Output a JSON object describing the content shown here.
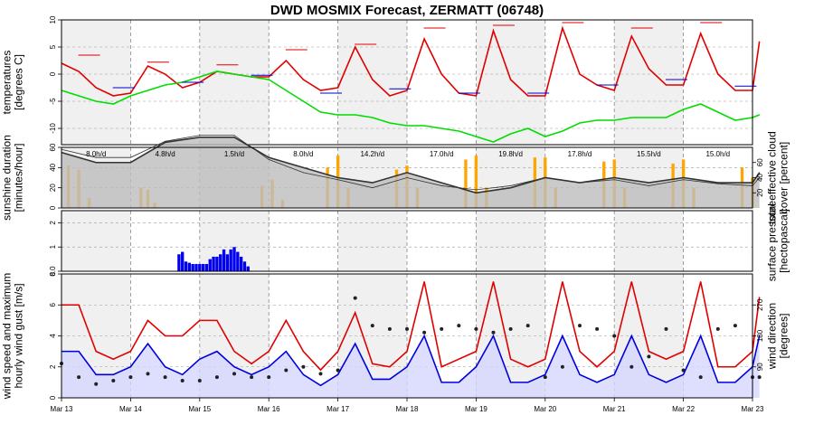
{
  "chart_data": {
    "type": "line",
    "title": "DWD MOSMIX Forecast, ZERMATT (06748)",
    "dates": [
      "Mar 13",
      "Mar 14",
      "Mar 15",
      "Mar 16",
      "Mar 17",
      "Mar 18",
      "Mar 19",
      "Mar 20",
      "Mar 21",
      "Mar 22",
      "Mar 23"
    ],
    "colors": {
      "temp": "#e00000",
      "dew": "#00dd00",
      "sun": "#ffa500",
      "cloud": "#bdbdbd",
      "precip": "#0000ee",
      "wind": "#0000dd",
      "gust": "#e00000",
      "dir": "#222222",
      "wind_fill": "#d6d6ff"
    },
    "panels": [
      {
        "name": "temperatures",
        "ylabel": "temperatures\n[degrees C]",
        "ylim": [
          -13,
          10
        ],
        "yticks": [
          -10,
          -5,
          0,
          5,
          10
        ],
        "series": [
          {
            "name": "temperature",
            "type": "line",
            "x": [
              0,
              0.25,
              0.5,
              0.75,
              1,
              1.25,
              1.5,
              1.75,
              2,
              2.25,
              2.5,
              2.75,
              3,
              3.25,
              3.5,
              3.75,
              4,
              4.25,
              4.5,
              4.75,
              5,
              5.25,
              5.5,
              5.75,
              6,
              6.25,
              6.5,
              6.75,
              7,
              7.25,
              7.5,
              7.75,
              8,
              8.25,
              8.5,
              8.75,
              9,
              9.25,
              9.5,
              9.75,
              10,
              10.1
            ],
            "y": [
              2,
              0.5,
              -2.5,
              -4,
              -3.5,
              1.5,
              0,
              -2.5,
              -1.5,
              0.5,
              0,
              -0.5,
              -0.5,
              2.5,
              -1,
              -3,
              -2.5,
              5,
              -1,
              -4,
              -3,
              6.5,
              0,
              -3.5,
              -4,
              8,
              -1,
              -4,
              -4,
              8.5,
              0,
              -2,
              -3,
              7,
              1,
              -2,
              -2,
              7.5,
              0,
              -3,
              -3,
              6
            ]
          },
          {
            "name": "dew point",
            "type": "line",
            "x": [
              0,
              0.25,
              0.5,
              0.75,
              1,
              1.25,
              1.5,
              1.75,
              2,
              2.25,
              2.5,
              2.75,
              3,
              3.25,
              3.5,
              3.75,
              4,
              4.25,
              4.5,
              4.75,
              5,
              5.25,
              5.5,
              5.75,
              6,
              6.25,
              6.5,
              6.75,
              7,
              7.25,
              7.5,
              7.75,
              8,
              8.25,
              8.5,
              8.75,
              9,
              9.25,
              9.5,
              9.75,
              10,
              10.1
            ],
            "y": [
              -3,
              -4,
              -5,
              -5.5,
              -4,
              -3,
              -2,
              -1.5,
              -0.5,
              0.5,
              0,
              -0.5,
              -1,
              -3,
              -5,
              -7,
              -7.5,
              -7.5,
              -8,
              -9,
              -9.5,
              -9.5,
              -10,
              -10.5,
              -11.5,
              -12.5,
              -11,
              -10,
              -11.5,
              -10.5,
              -9,
              -8.5,
              -8.5,
              -8,
              -8,
              -8,
              -6.5,
              -5.5,
              -7,
              -8.5,
              -8,
              -7.5
            ]
          },
          {
            "name": "daily max",
            "type": "segments",
            "x": [
              0.4,
              1.4,
              2.4,
              3.4,
              4.4,
              5.4,
              6.4,
              7.4,
              8.4,
              9.4
            ],
            "y": [
              3.5,
              2.2,
              1.7,
              4.5,
              5.5,
              8.5,
              9.0,
              9.5,
              8.5,
              9.5
            ]
          },
          {
            "name": "daily min",
            "type": "segments",
            "x": [
              0.9,
              1.9,
              2.9,
              3.9,
              4.9,
              5.9,
              6.9,
              7.9,
              8.9,
              9.9
            ],
            "y": [
              -2.5,
              -1.5,
              -0.2,
              -3.5,
              -2.7,
              -3.5,
              -3.5,
              -2,
              -1,
              -2.2
            ]
          }
        ]
      },
      {
        "name": "sunshine duration",
        "ylabel": "sunshine duration\n[minutes/hour]",
        "ylim": [
          0,
          60
        ],
        "yticks": [
          0,
          20,
          40,
          60
        ],
        "y2label": "total effective cloud\ncover [percent]",
        "y2ticks": [
          20,
          40,
          60
        ],
        "series": [
          {
            "name": "sunshine",
            "type": "bar",
            "x": [
              0.1,
              0.25,
              0.4,
              1.15,
              1.25,
              1.35,
              2.9,
              3.05,
              3.2,
              3.85,
              4.0,
              4.15,
              4.85,
              5.0,
              5.15,
              5.85,
              6.0,
              6.15,
              6.85,
              7.0,
              7.15,
              7.85,
              8.0,
              8.15,
              8.85,
              9.0,
              9.15,
              9.85,
              10.0
            ],
            "y": [
              42,
              38,
              10,
              20,
              18,
              5,
              22,
              28,
              8,
              40,
              52,
              20,
              38,
              42,
              20,
              48,
              52,
              20,
              50,
              50,
              20,
              46,
              48,
              20,
              44,
              48,
              20,
              40,
              30
            ]
          },
          {
            "name": "cloud cover",
            "type": "area",
            "x": [
              0,
              0.5,
              1,
              1.5,
              2,
              2.5,
              3,
              3.5,
              4,
              4.5,
              5,
              5.5,
              6,
              6.5,
              7,
              7.5,
              8,
              8.5,
              9,
              9.5,
              10,
              10.1
            ],
            "y": [
              55,
              45,
              45,
              65,
              70,
              70,
              50,
              40,
              30,
              25,
              35,
              25,
              15,
              20,
              30,
              25,
              30,
              25,
              30,
              25,
              25,
              35
            ]
          },
          {
            "name": "cloud cover alt",
            "type": "line",
            "x": [
              0,
              0.5,
              1,
              1.5,
              2,
              2.5,
              3,
              3.5,
              4,
              4.5,
              5,
              5.5,
              6,
              6.5,
              7,
              7.5,
              8,
              8.5,
              9,
              9.5,
              10,
              10.1
            ],
            "y": [
              58,
              50,
              50,
              66,
              72,
              72,
              48,
              35,
              28,
              20,
              30,
              22,
              18,
              22,
              30,
              25,
              28,
              22,
              28,
              24,
              22,
              30
            ]
          }
        ],
        "day_labels": [
          "8.0h/d",
          "4.8h/d",
          "1.5h/d",
          "8.0h/d",
          "14.2h/d",
          "17.0h/d",
          "19.8h/d",
          "17.8h/d",
          "15.5h/d",
          "15.0h/d"
        ]
      },
      {
        "name": "precipitation",
        "ylabel": "",
        "ylim": [
          0,
          2.5
        ],
        "yticks": [
          0.0,
          1.0,
          2.0
        ],
        "y2label": "surface pressure\n[hectopascal]",
        "series": [
          {
            "name": "precipitation",
            "type": "bar",
            "x": [
              1.7,
              1.75,
              1.8,
              1.85,
              1.9,
              1.95,
              2.0,
              2.05,
              2.1,
              2.15,
              2.2,
              2.25,
              2.3,
              2.35,
              2.4,
              2.45,
              2.5,
              2.55,
              2.6,
              2.65,
              2.7
            ],
            "y": [
              0.7,
              0.8,
              0.4,
              0.35,
              0.3,
              0.3,
              0.3,
              0.3,
              0.3,
              0.5,
              0.6,
              0.6,
              0.7,
              0.9,
              0.7,
              0.9,
              1.0,
              0.8,
              0.6,
              0.4,
              0.2
            ]
          }
        ]
      },
      {
        "name": "wind",
        "ylabel": "wind speed and maximum\nhourly wind gust [m/s]",
        "ylim": [
          0,
          8
        ],
        "yticks": [
          0,
          2,
          4,
          6,
          8
        ],
        "y2label": "wind direction\n[degrees]",
        "y2ticks": [
          90,
          180,
          270
        ],
        "series": [
          {
            "name": "wind gust",
            "type": "line",
            "x": [
              0,
              0.25,
              0.5,
              0.75,
              1,
              1.25,
              1.5,
              1.75,
              2,
              2.25,
              2.5,
              2.75,
              3,
              3.25,
              3.5,
              3.75,
              4,
              4.25,
              4.5,
              4.75,
              5,
              5.25,
              5.5,
              5.75,
              6,
              6.25,
              6.5,
              6.75,
              7,
              7.25,
              7.5,
              7.75,
              8,
              8.25,
              8.5,
              8.75,
              9,
              9.25,
              9.5,
              9.75,
              10,
              10.1
            ],
            "y": [
              6,
              6,
              3,
              2.5,
              3,
              5,
              4,
              4,
              5,
              5,
              3,
              2.2,
              3,
              5,
              3,
              1.8,
              3,
              5.5,
              2.2,
              2,
              3,
              7.5,
              2,
              2.5,
              3,
              7.5,
              2.5,
              2,
              2.5,
              7.5,
              3,
              2,
              3,
              7.5,
              3,
              2.5,
              3,
              7.5,
              2,
              2,
              3,
              6.5
            ]
          },
          {
            "name": "wind speed",
            "type": "area",
            "x": [
              0,
              0.25,
              0.5,
              0.75,
              1,
              1.25,
              1.5,
              1.75,
              2,
              2.25,
              2.5,
              2.75,
              3,
              3.25,
              3.5,
              3.75,
              4,
              4.25,
              4.5,
              4.75,
              5,
              5.25,
              5.5,
              5.75,
              6,
              6.25,
              6.5,
              6.75,
              7,
              7.25,
              7.5,
              7.75,
              8,
              8.25,
              8.5,
              8.75,
              9,
              9.25,
              9.5,
              9.75,
              10,
              10.1
            ],
            "y": [
              3,
              3,
              1.5,
              1.5,
              2,
              3.5,
              2,
              1.5,
              2.5,
              3,
              2,
              1.5,
              2,
              3,
              1.5,
              0.8,
              1.5,
              3.5,
              1.2,
              1.2,
              2,
              4,
              1,
              1,
              2,
              4,
              1,
              1,
              1.5,
              4,
              1.5,
              1,
              1.5,
              4,
              1.5,
              1,
              1.5,
              4,
              1,
              1,
              2,
              4
            ]
          },
          {
            "name": "wind direction",
            "type": "scatter",
            "x": [
              0,
              0.25,
              0.5,
              0.75,
              1,
              1.25,
              1.5,
              1.75,
              2,
              2.25,
              2.5,
              2.75,
              3,
              3.25,
              3.5,
              3.75,
              4,
              4.25,
              4.5,
              4.75,
              5,
              5.25,
              5.5,
              5.75,
              6,
              6.25,
              6.5,
              6.75,
              7,
              7.25,
              7.5,
              7.75,
              8,
              8.25,
              8.5,
              8.75,
              9,
              9.25,
              9.5,
              9.75,
              10,
              10.1
            ],
            "y": [
              100,
              60,
              40,
              50,
              60,
              70,
              60,
              50,
              50,
              60,
              70,
              60,
              60,
              80,
              90,
              70,
              80,
              290,
              210,
              200,
              200,
              190,
              200,
              210,
              200,
              190,
              200,
              210,
              60,
              90,
              210,
              200,
              180,
              90,
              120,
              200,
              80,
              60,
              200,
              210,
              60,
              60
            ]
          }
        ]
      }
    ]
  }
}
